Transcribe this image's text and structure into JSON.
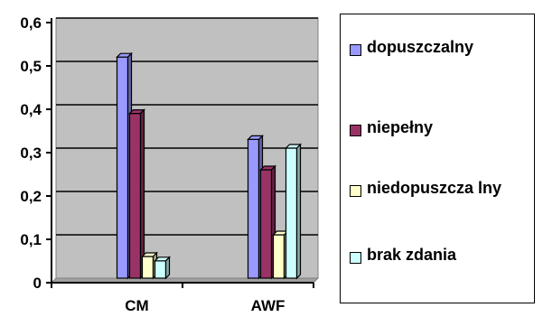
{
  "chart_data": {
    "type": "bar",
    "categories": [
      "CM",
      "AWF"
    ],
    "series": [
      {
        "name": "dopuszczalny",
        "values": [
          0.51,
          0.32
        ]
      },
      {
        "name": "niepełny",
        "values": [
          0.38,
          0.25
        ]
      },
      {
        "name": "niedopuszczalny",
        "values": [
          0.05,
          0.1
        ]
      },
      {
        "name": "brak zdania",
        "values": [
          0.04,
          0.3
        ]
      }
    ],
    "ylim": [
      0,
      0.6
    ],
    "yticks": [
      "0",
      "0,1",
      "0,2",
      "0,3",
      "0,4",
      "0,5",
      "0,6"
    ],
    "grid": true,
    "legend_position": "right",
    "title": "",
    "xlabel": "",
    "ylabel": ""
  },
  "legend": {
    "items": [
      {
        "label": "dopuszczalny",
        "color": "#9999ff"
      },
      {
        "label": "niepełny",
        "color": "#993366"
      },
      {
        "label": "niedopuszcza lny",
        "color": "#ffffcc"
      },
      {
        "label": "brak zdania",
        "color": "#ccffff"
      }
    ]
  },
  "colors": {
    "plot_bg": "#c0c0c0",
    "series": [
      "#9999ff",
      "#993366",
      "#ffffcc",
      "#ccffff"
    ]
  }
}
